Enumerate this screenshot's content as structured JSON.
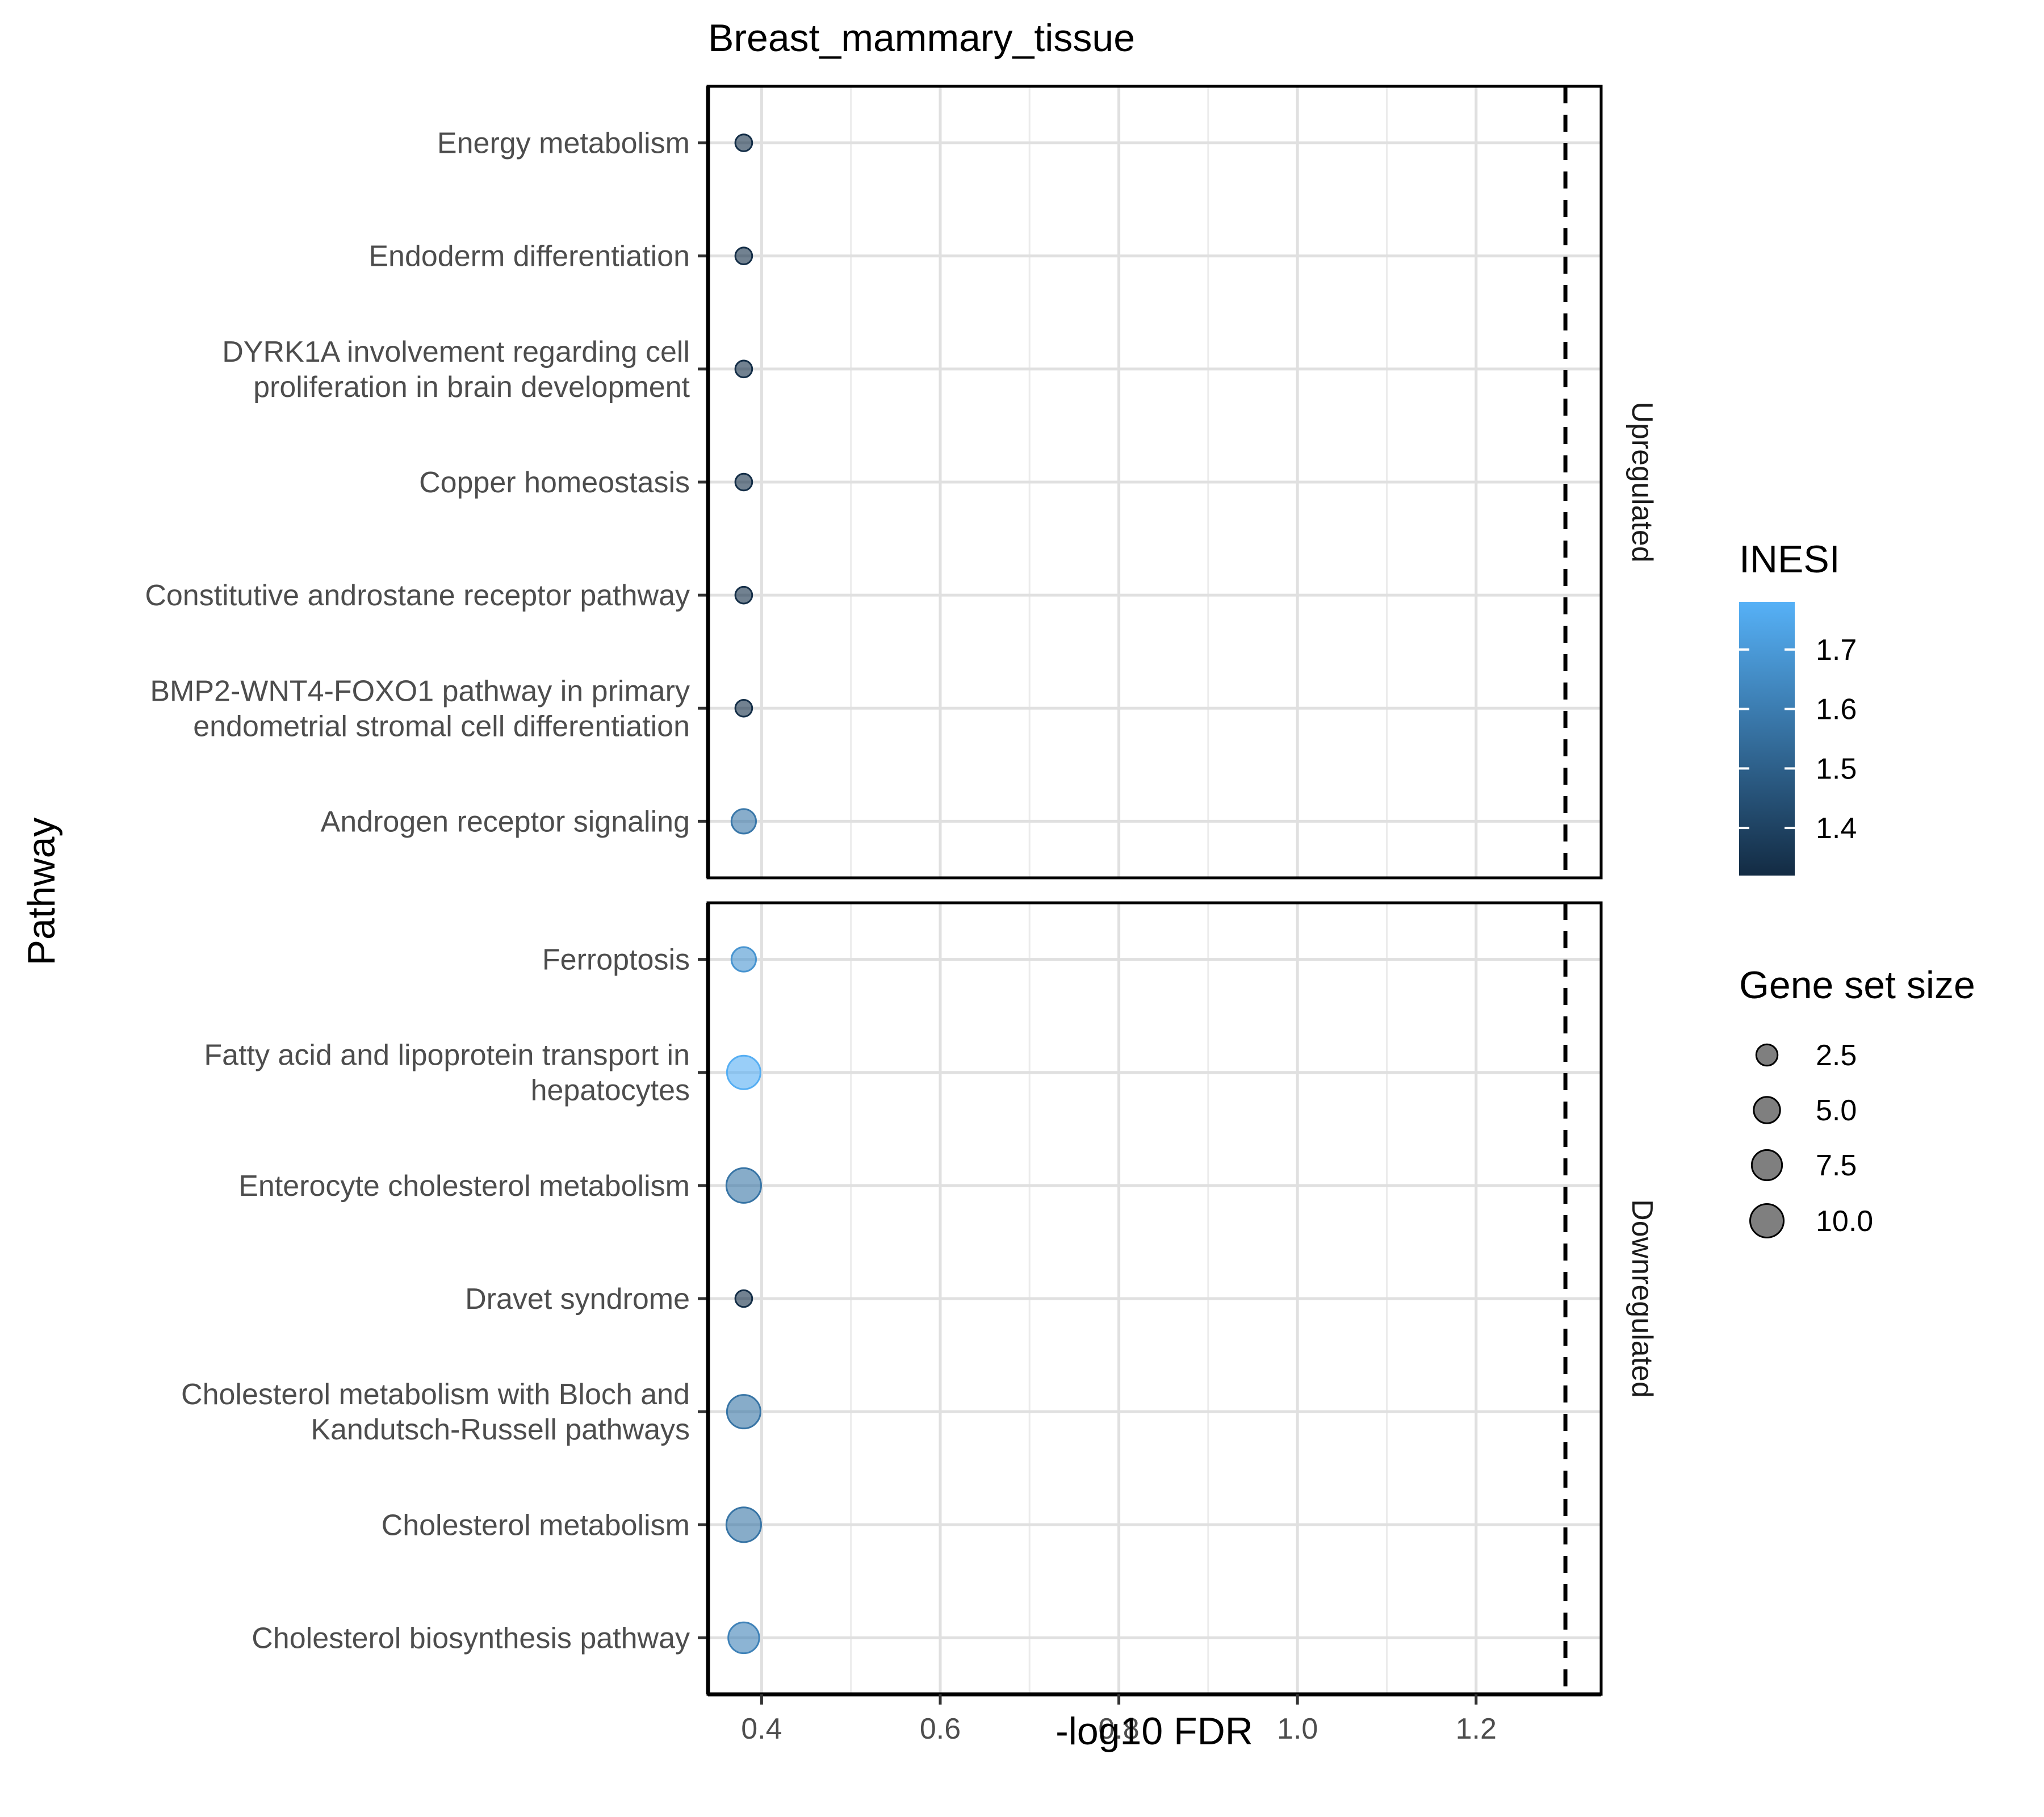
{
  "chart_data": {
    "type": "scatter",
    "title": "Breast_mammary_tissue",
    "xlabel": "-log10 FDR",
    "ylabel": "Pathway",
    "xlim": [
      0.34,
      1.34
    ],
    "x_ticks": [
      "0.4",
      "0.6",
      "0.8",
      "1.0",
      "1.2"
    ],
    "x_tick_values": [
      0.4,
      0.6,
      0.8,
      1.0,
      1.2
    ],
    "threshold_x": 1.3,
    "grid": true,
    "legend_placement": "right",
    "color_legend": {
      "title": "INESI",
      "min": 1.32,
      "max": 1.78,
      "low_color": "#132B43",
      "high_color": "#56B1F7",
      "ticks": [
        "1.4",
        "1.5",
        "1.6",
        "1.7"
      ],
      "tick_values": [
        1.4,
        1.5,
        1.6,
        1.7
      ]
    },
    "size_legend": {
      "title": "Gene set size",
      "labels": [
        "2.5",
        "5.0",
        "7.5",
        "10.0"
      ],
      "values": [
        2.5,
        5.0,
        7.5,
        10.0
      ]
    },
    "panels": [
      {
        "label": "Upregulated",
        "points": [
          {
            "pathway_lines": [
              "Energy metabolism"
            ],
            "x": 0.38,
            "size": 1,
            "nes": 1.33
          },
          {
            "pathway_lines": [
              "Endoderm differentiation"
            ],
            "x": 0.38,
            "size": 1,
            "nes": 1.33
          },
          {
            "pathway_lines": [
              "DYRK1A involvement regarding cell",
              "proliferation in brain development"
            ],
            "x": 0.38,
            "size": 1,
            "nes": 1.33
          },
          {
            "pathway_lines": [
              "Copper homeostasis"
            ],
            "x": 0.38,
            "size": 1,
            "nes": 1.33
          },
          {
            "pathway_lines": [
              "Constitutive androstane receptor pathway"
            ],
            "x": 0.38,
            "size": 1,
            "nes": 1.33
          },
          {
            "pathway_lines": [
              "BMP2-WNT4-FOXO1 pathway in primary",
              "endometrial stromal cell differentiation"
            ],
            "x": 0.38,
            "size": 1,
            "nes": 1.33
          },
          {
            "pathway_lines": [
              "Androgen receptor signaling"
            ],
            "x": 0.38,
            "size": 4,
            "nes": 1.58
          }
        ]
      },
      {
        "label": "Downregulated",
        "points": [
          {
            "pathway_lines": [
              "Ferroptosis"
            ],
            "x": 0.38,
            "size": 4,
            "nes": 1.68
          },
          {
            "pathway_lines": [
              "Fatty acid and lipoprotein transport in",
              "hepatocytes"
            ],
            "x": 0.38,
            "size": 10,
            "nes": 1.77
          },
          {
            "pathway_lines": [
              "Enterocyte cholesterol metabolism"
            ],
            "x": 0.38,
            "size": 11,
            "nes": 1.57
          },
          {
            "pathway_lines": [
              "Dravet syndrome"
            ],
            "x": 0.38,
            "size": 1,
            "nes": 1.33
          },
          {
            "pathway_lines": [
              "Cholesterol metabolism with Bloch and",
              "Kandutsch-Russell pathways"
            ],
            "x": 0.38,
            "size": 10,
            "nes": 1.57
          },
          {
            "pathway_lines": [
              "Cholesterol metabolism"
            ],
            "x": 0.38,
            "size": 11,
            "nes": 1.57
          },
          {
            "pathway_lines": [
              "Cholesterol biosynthesis pathway"
            ],
            "x": 0.38,
            "size": 8,
            "nes": 1.62
          }
        ]
      }
    ]
  }
}
